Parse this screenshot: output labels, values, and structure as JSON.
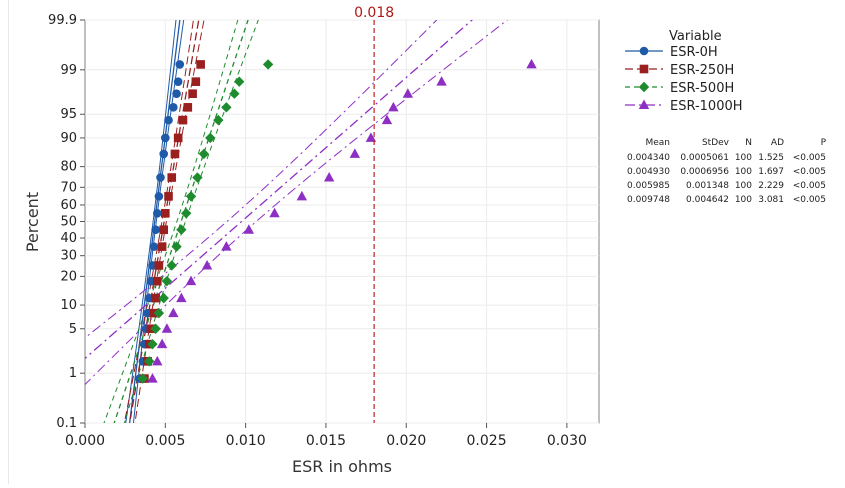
{
  "chart_data": {
    "type": "scatter",
    "scale": "normal-probability",
    "xlabel": "ESR in ohms",
    "ylabel": "Percent",
    "xlim": [
      0,
      0.032
    ],
    "ylim": [
      0.1,
      99.9
    ],
    "x_ticks": [
      "0.000",
      "0.005",
      "0.010",
      "0.015",
      "0.020",
      "0.025",
      "0.030"
    ],
    "y_ticks": [
      {
        "value": 0.1,
        "label": "0.1"
      },
      {
        "value": 1,
        "label": "1"
      },
      {
        "value": 5,
        "label": "5"
      },
      {
        "value": 10,
        "label": "10"
      },
      {
        "value": 20,
        "label": "20"
      },
      {
        "value": 30,
        "label": "30"
      },
      {
        "value": 40,
        "label": "40"
      },
      {
        "value": 50,
        "label": "50"
      },
      {
        "value": 60,
        "label": "60"
      },
      {
        "value": 70,
        "label": "70"
      },
      {
        "value": 80,
        "label": "80"
      },
      {
        "value": 90,
        "label": "90"
      },
      {
        "value": 95,
        "label": "95"
      },
      {
        "value": 99,
        "label": "99"
      },
      {
        "value": 99.9,
        "label": "99.9"
      }
    ],
    "grid": true,
    "reference_line": {
      "x": 0.018,
      "label": "0.018",
      "color": "#c41e1e"
    },
    "legend": {
      "title": "Variable",
      "position": "right"
    },
    "series": [
      {
        "name": "ESR-0H",
        "color": "#1f5aa8",
        "marker": "circle",
        "dash": "",
        "mean": 0.00434,
        "stdev": 0.0005061,
        "points": [
          [
            0.0034,
            0.8
          ],
          [
            0.0036,
            1.6
          ],
          [
            0.0037,
            3
          ],
          [
            0.0038,
            5
          ],
          [
            0.0039,
            8
          ],
          [
            0.004,
            12
          ],
          [
            0.0041,
            18
          ],
          [
            0.0042,
            25
          ],
          [
            0.0043,
            35
          ],
          [
            0.0044,
            45
          ],
          [
            0.0045,
            55
          ],
          [
            0.0046,
            65
          ],
          [
            0.0047,
            75
          ],
          [
            0.0049,
            85
          ],
          [
            0.005,
            90
          ],
          [
            0.0052,
            94
          ],
          [
            0.0055,
            96
          ],
          [
            0.0057,
            97.5
          ],
          [
            0.0058,
            98.4
          ],
          [
            0.0059,
            99.2
          ]
        ]
      },
      {
        "name": "ESR-250H",
        "color": "#9a1f1f",
        "marker": "square",
        "dash": "8 4",
        "mean": 0.00493,
        "stdev": 0.0006956,
        "points": [
          [
            0.0037,
            0.8
          ],
          [
            0.0039,
            1.6
          ],
          [
            0.004,
            3
          ],
          [
            0.0041,
            5
          ],
          [
            0.0043,
            8
          ],
          [
            0.0044,
            12
          ],
          [
            0.0045,
            18
          ],
          [
            0.0046,
            25
          ],
          [
            0.0048,
            35
          ],
          [
            0.0049,
            45
          ],
          [
            0.005,
            55
          ],
          [
            0.0052,
            65
          ],
          [
            0.0054,
            75
          ],
          [
            0.0056,
            85
          ],
          [
            0.0058,
            90
          ],
          [
            0.0061,
            94
          ],
          [
            0.0064,
            96
          ],
          [
            0.0067,
            97.5
          ],
          [
            0.0069,
            98.4
          ],
          [
            0.0072,
            99.2
          ]
        ]
      },
      {
        "name": "ESR-500H",
        "color": "#1e8c2e",
        "marker": "diamond",
        "dash": "5 4",
        "mean": 0.005985,
        "stdev": 0.001348,
        "points": [
          [
            0.0036,
            0.8
          ],
          [
            0.004,
            1.6
          ],
          [
            0.0042,
            3
          ],
          [
            0.0044,
            5
          ],
          [
            0.0046,
            8
          ],
          [
            0.0049,
            12
          ],
          [
            0.0051,
            18
          ],
          [
            0.0054,
            25
          ],
          [
            0.0057,
            35
          ],
          [
            0.006,
            45
          ],
          [
            0.0063,
            55
          ],
          [
            0.0066,
            65
          ],
          [
            0.007,
            75
          ],
          [
            0.0074,
            85
          ],
          [
            0.0078,
            90
          ],
          [
            0.0083,
            94
          ],
          [
            0.0088,
            96
          ],
          [
            0.0093,
            97.5
          ],
          [
            0.0096,
            98.4
          ],
          [
            0.0114,
            99.2
          ]
        ]
      },
      {
        "name": "ESR-1000H",
        "color": "#8e2fc4",
        "marker": "triangle",
        "dash": "10 4 2 4",
        "mean": 0.009748,
        "stdev": 0.004642,
        "points": [
          [
            0.0042,
            0.8
          ],
          [
            0.0045,
            1.6
          ],
          [
            0.0048,
            3
          ],
          [
            0.0051,
            5
          ],
          [
            0.0055,
            8
          ],
          [
            0.006,
            12
          ],
          [
            0.0066,
            18
          ],
          [
            0.0076,
            25
          ],
          [
            0.0088,
            35
          ],
          [
            0.0102,
            45
          ],
          [
            0.0118,
            55
          ],
          [
            0.0135,
            65
          ],
          [
            0.0152,
            75
          ],
          [
            0.0168,
            85
          ],
          [
            0.0178,
            90
          ],
          [
            0.0188,
            94
          ],
          [
            0.0192,
            96
          ],
          [
            0.0201,
            97.5
          ],
          [
            0.0222,
            98.4
          ],
          [
            0.0278,
            99.2
          ]
        ]
      }
    ],
    "stats_table": {
      "headers": [
        "Mean",
        "StDev",
        "N",
        "AD",
        "P"
      ],
      "rows": [
        [
          "0.004340",
          "0.0005061",
          "100",
          "1.525",
          "<0.005"
        ],
        [
          "0.004930",
          "0.0006956",
          "100",
          "1.697",
          "<0.005"
        ],
        [
          "0.005985",
          "0.001348",
          "100",
          "2.229",
          "<0.005"
        ],
        [
          "0.009748",
          "0.004642",
          "100",
          "3.081",
          "<0.005"
        ]
      ]
    }
  }
}
